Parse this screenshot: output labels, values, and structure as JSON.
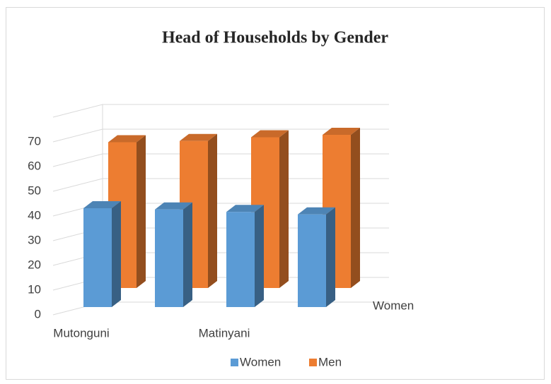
{
  "chart_data": {
    "type": "bar3d",
    "title": "Head of Households by Gender",
    "categories": [
      "Mutonguni",
      null,
      "Matinyani",
      null
    ],
    "series": [
      {
        "name": "Women",
        "color": "#5b9bd5",
        "values": [
          40,
          39.5,
          38.5,
          37.5
        ]
      },
      {
        "name": "Men",
        "color": "#ed7d31",
        "values": [
          59,
          59.5,
          61,
          62
        ]
      }
    ],
    "series_axis_labels": [
      "Women"
    ],
    "ylim": [
      0,
      80
    ],
    "yticks": [
      0,
      10,
      20,
      30,
      40,
      50,
      60,
      70
    ],
    "grid": true,
    "legend": "bottom"
  }
}
